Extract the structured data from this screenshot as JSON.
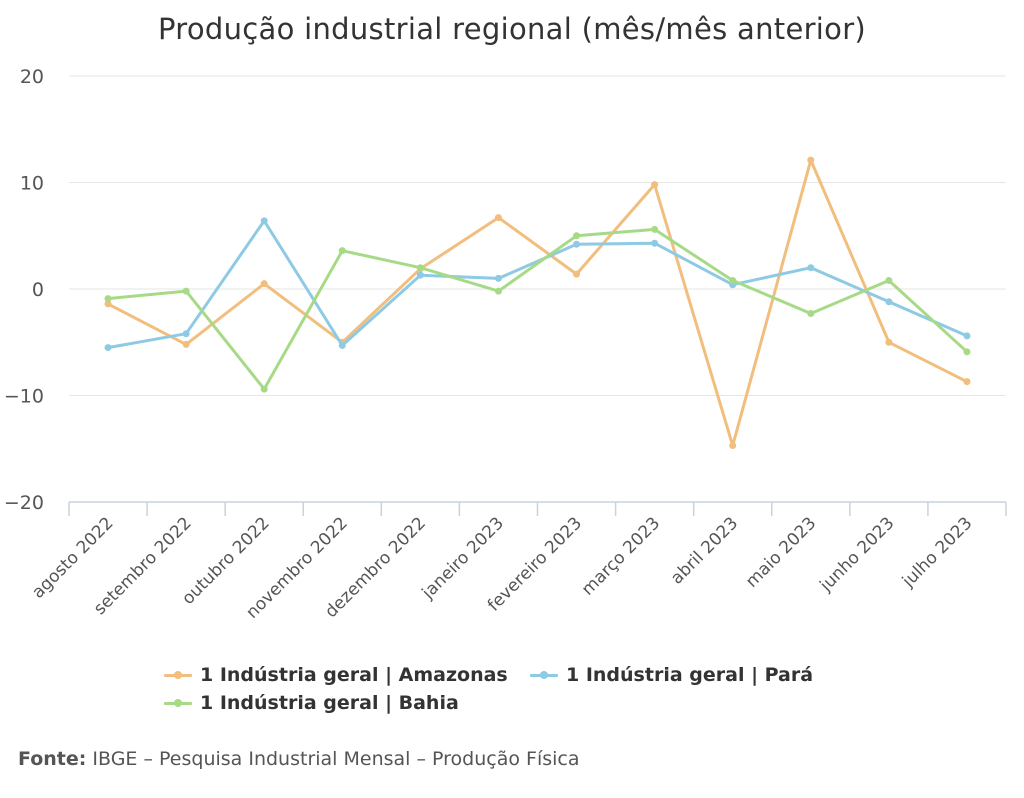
{
  "chart_data": {
    "type": "line",
    "title": "Produção industrial regional (mês/mês anterior)",
    "categories": [
      "agosto 2022",
      "setembro 2022",
      "outubro 2022",
      "novembro 2022",
      "dezembro 2022",
      "janeiro 2023",
      "fevereiro 2023",
      "março 2023",
      "abril 2023",
      "maio 2023",
      "junho 2023",
      "julho 2023"
    ],
    "ylim": [
      -20,
      20
    ],
    "yticks": [
      20,
      10,
      0,
      -10,
      -20
    ],
    "ytick_labels": [
      "20",
      "10",
      "0",
      "−10",
      "−20"
    ],
    "grid": true,
    "legend_position": "bottom",
    "series": [
      {
        "name": "1 Indústria geral | Amazonas",
        "color": "#f2be7e",
        "values": [
          -1.4,
          -5.2,
          0.5,
          -5.0,
          1.9,
          6.7,
          1.4,
          9.8,
          -14.7,
          12.1,
          -5.0,
          -8.7
        ]
      },
      {
        "name": "1 Indústria geral | Pará",
        "color": "#8ecae3",
        "values": [
          -5.5,
          -4.2,
          6.4,
          -5.3,
          1.3,
          1.0,
          4.2,
          4.3,
          0.4,
          2.0,
          -1.2,
          -4.4
        ]
      },
      {
        "name": "1 Indústria geral | Bahia",
        "color": "#a7da86",
        "values": [
          -0.9,
          -0.2,
          -9.4,
          3.6,
          2.0,
          -0.2,
          5.0,
          5.6,
          0.8,
          -2.3,
          0.8,
          -5.9
        ]
      }
    ]
  },
  "source": {
    "label": "Fonte:",
    "text": "IBGE – Pesquisa Industrial Mensal – Produção Física"
  }
}
